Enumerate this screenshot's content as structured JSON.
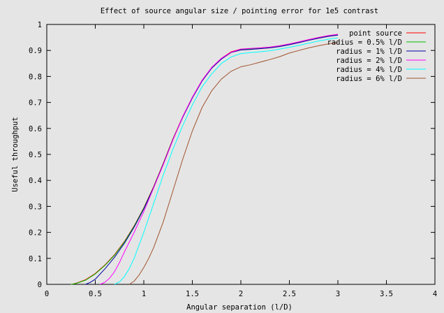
{
  "chart_data": {
    "type": "line",
    "title": "Effect of source angular size / pointing error for 1e5 contrast",
    "xlabel": "Angular separation (l/D)",
    "ylabel": "Useful throughput",
    "xlim": [
      0,
      4
    ],
    "ylim": [
      0,
      1
    ],
    "grid": false,
    "legend_position": "top-right",
    "x_ticks": [
      "0",
      "0.5",
      "1",
      "1.5",
      "2",
      "2.5",
      "3",
      "3.5",
      "4"
    ],
    "y_ticks": [
      "0",
      "0.1",
      "0.2",
      "0.3",
      "0.4",
      "0.5",
      "0.6",
      "0.7",
      "0.8",
      "0.9",
      "1"
    ],
    "series": [
      {
        "name": "point source",
        "color": "#ff0000",
        "x": [
          0.25,
          0.3,
          0.4,
          0.5,
          0.6,
          0.7,
          0.8,
          0.9,
          1.0,
          1.1,
          1.2,
          1.3,
          1.4,
          1.5,
          1.6,
          1.7,
          1.8,
          1.9,
          2.0,
          2.1,
          2.2,
          2.3,
          2.4,
          2.5,
          2.6,
          2.7,
          2.8,
          2.9,
          3.0
        ],
        "y": [
          0.0,
          0.004,
          0.018,
          0.042,
          0.075,
          0.115,
          0.165,
          0.225,
          0.295,
          0.375,
          0.465,
          0.56,
          0.645,
          0.72,
          0.785,
          0.835,
          0.87,
          0.895,
          0.905,
          0.907,
          0.91,
          0.913,
          0.918,
          0.925,
          0.933,
          0.942,
          0.95,
          0.957,
          0.962
        ]
      },
      {
        "name": "radius = 0.5% l/D",
        "color": "#00c000",
        "x": [
          0.25,
          0.3,
          0.4,
          0.5,
          0.6,
          0.7,
          0.8,
          0.9,
          1.0,
          1.1,
          1.2,
          1.3,
          1.4,
          1.5,
          1.6,
          1.7,
          1.8,
          1.9,
          2.0,
          2.1,
          2.2,
          2.3,
          2.4,
          2.5,
          2.6,
          2.7,
          2.8,
          2.9,
          3.0
        ],
        "y": [
          0.0,
          0.003,
          0.016,
          0.04,
          0.073,
          0.113,
          0.163,
          0.223,
          0.293,
          0.373,
          0.463,
          0.558,
          0.643,
          0.718,
          0.783,
          0.833,
          0.868,
          0.893,
          0.903,
          0.905,
          0.908,
          0.911,
          0.916,
          0.923,
          0.931,
          0.94,
          0.948,
          0.955,
          0.96
        ]
      },
      {
        "name": "radius = 1% l/D",
        "color": "#0000a0",
        "x": [
          0.4,
          0.45,
          0.5,
          0.6,
          0.7,
          0.8,
          0.9,
          1.0,
          1.1,
          1.2,
          1.3,
          1.4,
          1.5,
          1.6,
          1.7,
          1.8,
          1.9,
          2.0,
          2.1,
          2.2,
          2.3,
          2.4,
          2.5,
          2.6,
          2.7,
          2.8,
          2.9,
          3.0
        ],
        "y": [
          0.0,
          0.008,
          0.02,
          0.06,
          0.105,
          0.158,
          0.22,
          0.29,
          0.372,
          0.462,
          0.557,
          0.642,
          0.717,
          0.782,
          0.832,
          0.867,
          0.892,
          0.902,
          0.904,
          0.907,
          0.91,
          0.915,
          0.922,
          0.93,
          0.939,
          0.947,
          0.954,
          0.959
        ]
      },
      {
        "name": "radius = 2% l/D",
        "color": "#ff00ff",
        "x": [
          0.55,
          0.6,
          0.65,
          0.7,
          0.75,
          0.8,
          0.9,
          1.0,
          1.1,
          1.2,
          1.3,
          1.4,
          1.5,
          1.6,
          1.7,
          1.8,
          1.9,
          2.0,
          2.1,
          2.2,
          2.3,
          2.4,
          2.5,
          2.6,
          2.7,
          2.8,
          2.9,
          3.0
        ],
        "y": [
          0.0,
          0.008,
          0.025,
          0.05,
          0.085,
          0.125,
          0.2,
          0.28,
          0.37,
          0.46,
          0.555,
          0.645,
          0.72,
          0.785,
          0.835,
          0.87,
          0.893,
          0.905,
          0.908,
          0.91,
          0.913,
          0.918,
          0.925,
          0.933,
          0.942,
          0.95,
          0.957,
          0.962
        ]
      },
      {
        "name": "radius = 4% l/D",
        "color": "#00ffff",
        "x": [
          0.7,
          0.75,
          0.8,
          0.85,
          0.9,
          0.95,
          1.0,
          1.1,
          1.2,
          1.3,
          1.4,
          1.5,
          1.6,
          1.7,
          1.8,
          1.9,
          2.0,
          2.1,
          2.2,
          2.3,
          2.4,
          2.5,
          2.6,
          2.7,
          2.8,
          2.9,
          3.0
        ],
        "y": [
          0.0,
          0.01,
          0.03,
          0.06,
          0.1,
          0.15,
          0.2,
          0.31,
          0.42,
          0.52,
          0.61,
          0.69,
          0.76,
          0.81,
          0.85,
          0.875,
          0.888,
          0.892,
          0.895,
          0.899,
          0.905,
          0.912,
          0.92,
          0.928,
          0.936,
          0.943,
          0.948
        ]
      },
      {
        "name": "radius = 6% l/D",
        "color": "#a0522d",
        "x": [
          0.85,
          0.9,
          0.95,
          1.0,
          1.05,
          1.1,
          1.2,
          1.3,
          1.4,
          1.5,
          1.6,
          1.7,
          1.8,
          1.9,
          2.0,
          2.1,
          2.2,
          2.3,
          2.4,
          2.5,
          2.6,
          2.7,
          2.8,
          2.9,
          3.0
        ],
        "y": [
          0.0,
          0.012,
          0.035,
          0.065,
          0.1,
          0.14,
          0.24,
          0.36,
          0.48,
          0.59,
          0.68,
          0.745,
          0.79,
          0.82,
          0.837,
          0.845,
          0.855,
          0.865,
          0.876,
          0.89,
          0.9,
          0.91,
          0.918,
          0.925,
          0.93
        ]
      }
    ]
  }
}
